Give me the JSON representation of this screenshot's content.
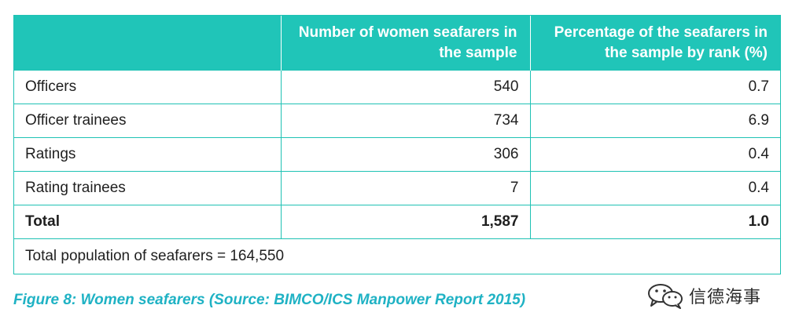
{
  "table": {
    "headers": [
      "",
      "Number of women seafarers in the sample",
      "Percentage of the seafarers in the sample by rank (%)"
    ],
    "rows": [
      {
        "rank": "Officers",
        "number": "540",
        "percentage": "0.7"
      },
      {
        "rank": "Officer trainees",
        "number": "734",
        "percentage": "6.9"
      },
      {
        "rank": "Ratings",
        "number": "306",
        "percentage": "0.4"
      },
      {
        "rank": "Rating trainees",
        "number": "7",
        "percentage": "0.4"
      }
    ],
    "total": {
      "rank": "Total",
      "number": "1,587",
      "percentage": "1.0"
    },
    "footer": "Total population of seafarers = 164,550"
  },
  "caption": "Figure 8: Women seafarers (Source: BIMCO/ICS Manpower Report 2015)",
  "watermark": {
    "icon": "wechat-icon",
    "text": "信德海事"
  },
  "colors": {
    "header_bg": "#20c5b8",
    "border": "#1fc2b4",
    "caption": "#1fb2c4"
  }
}
